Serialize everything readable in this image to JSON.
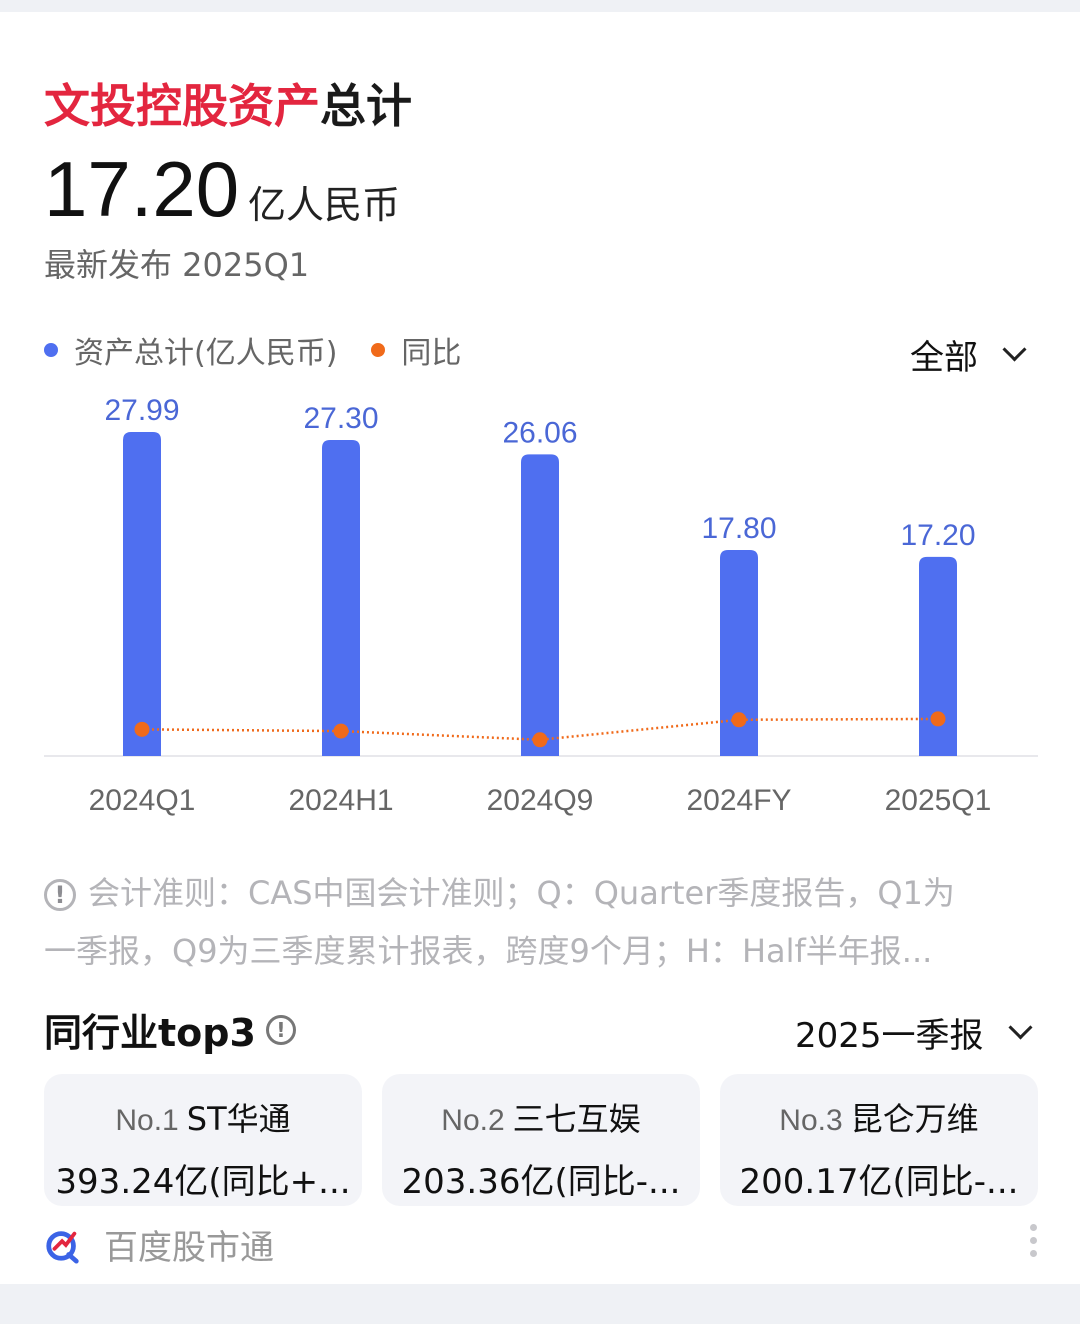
{
  "header": {
    "title_highlight": "文投控股资产",
    "title_rest": "总计",
    "value": "17.20",
    "unit": "亿人民币",
    "released": "最新发布 2025Q1"
  },
  "legend": {
    "series1": "资产总计(亿人民币)",
    "series2": "同比"
  },
  "filter": {
    "label": "全部"
  },
  "chart_data": {
    "type": "bar",
    "categories": [
      "2024Q1",
      "2024H1",
      "2024Q9",
      "2024FY",
      "2025Q1"
    ],
    "series": [
      {
        "name": "资产总计(亿人民币)",
        "type": "bar",
        "values": [
          27.99,
          27.3,
          26.06,
          17.8,
          17.2
        ],
        "color": "#4f6ff0"
      },
      {
        "name": "同比",
        "type": "line",
        "values": [
          -5,
          -7,
          -17,
          6,
          7
        ],
        "color": "#f06a1a"
      }
    ]
  },
  "note": {
    "line1": "会计准则：CAS中国会计准则；Q：Quarter季度报告，Q1为",
    "line2": "一季报，Q9为三季度累计报表，跨度9个月；H：Half半年报..."
  },
  "peers": {
    "title": "同行业top3",
    "period": "2025一季报",
    "items": [
      {
        "rank": "No.1",
        "name": "ST华通",
        "value": "393.24亿(同比+..."
      },
      {
        "rank": "No.2",
        "name": "三七互娱",
        "value": "203.36亿(同比-..."
      },
      {
        "rank": "No.3",
        "name": "昆仑万维",
        "value": "200.17亿(同比-..."
      }
    ]
  },
  "footer": {
    "brand": "百度股市通"
  },
  "colors": {
    "bar": "#4f6ff0",
    "line": "#f06a1a",
    "title_accent": "#e3263f"
  }
}
